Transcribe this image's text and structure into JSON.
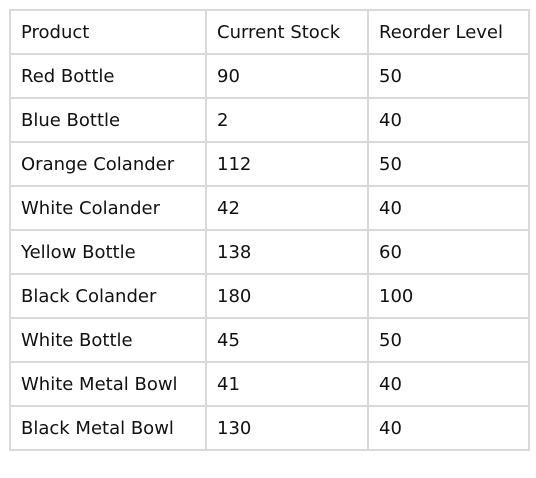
{
  "table": {
    "headers": [
      "Product",
      "Current Stock",
      "Reorder Level"
    ],
    "rows": [
      [
        "Red Bottle",
        "90",
        "50"
      ],
      [
        "Blue Bottle",
        "2",
        "40"
      ],
      [
        "Orange Colander",
        "112",
        "50"
      ],
      [
        "White Colander",
        "42",
        "40"
      ],
      [
        "Yellow Bottle",
        "138",
        "60"
      ],
      [
        "Black Colander",
        "180",
        "100"
      ],
      [
        "White Bottle",
        "45",
        "50"
      ],
      [
        "White Metal Bowl",
        "41",
        "40"
      ],
      [
        "Black Metal Bowl",
        "130",
        "40"
      ]
    ]
  },
  "colors": {
    "border": "#d9d9d9",
    "text": "#111111",
    "background": "#ffffff"
  }
}
